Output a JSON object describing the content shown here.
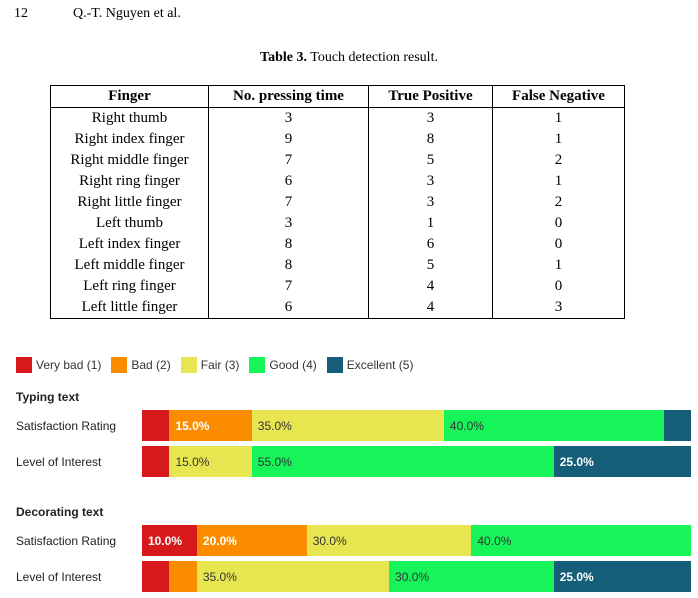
{
  "header": {
    "page_number": "12",
    "authors": "Q.-T. Nguyen et al."
  },
  "table": {
    "caption_label": "Table 3.",
    "caption_text": "Touch detection result.",
    "headers": [
      "Finger",
      "No. pressing time",
      "True Positive",
      "False Negative"
    ],
    "rows": [
      [
        "Right thumb",
        "3",
        "3",
        "1"
      ],
      [
        "Right index finger",
        "9",
        "8",
        "1"
      ],
      [
        "Right middle finger",
        "7",
        "5",
        "2"
      ],
      [
        "Right ring finger",
        "6",
        "3",
        "1"
      ],
      [
        "Right little finger",
        "7",
        "3",
        "2"
      ],
      [
        "Left thumb",
        "3",
        "1",
        "0"
      ],
      [
        "Left index finger",
        "8",
        "6",
        "0"
      ],
      [
        "Left middle finger",
        "8",
        "5",
        "1"
      ],
      [
        "Left ring finger",
        "7",
        "4",
        "0"
      ],
      [
        "Left little finger",
        "6",
        "4",
        "3"
      ]
    ]
  },
  "chart_data": {
    "type": "bar",
    "legend": [
      {
        "name": "Very bad (1)",
        "color": "#d7191c"
      },
      {
        "name": "Bad (2)",
        "color": "#fb8c00"
      },
      {
        "name": "Fair (3)",
        "color": "#e8e650"
      },
      {
        "name": "Good (4)",
        "color": "#16f45a"
      },
      {
        "name": "Excellent (5)",
        "color": "#145e7a"
      }
    ],
    "legend_placement": "top-left",
    "groups": [
      {
        "title": "Typing text",
        "rows": [
          {
            "label": "Satisfaction Rating",
            "values": [
              5,
              15,
              35,
              40,
              5
            ],
            "labels": [
              "",
              "15.0%",
              "35.0%",
              "40.0%",
              ""
            ]
          },
          {
            "label": "Level of Interest",
            "values": [
              5,
              0,
              15,
              55,
              25
            ],
            "labels": [
              "",
              "",
              "15.0%",
              "55.0%",
              "25.0%"
            ]
          }
        ]
      },
      {
        "title": "Decorating text",
        "rows": [
          {
            "label": "Satisfaction Rating",
            "values": [
              10,
              20,
              30,
              40,
              0
            ],
            "labels": [
              "10.0%",
              "20.0%",
              "30.0%",
              "40.0%",
              ""
            ]
          },
          {
            "label": "Level of Interest",
            "values": [
              5,
              5,
              35,
              30,
              25
            ],
            "labels": [
              "",
              "",
              "35.0%",
              "30.0%",
              "25.0%"
            ]
          }
        ]
      }
    ]
  }
}
